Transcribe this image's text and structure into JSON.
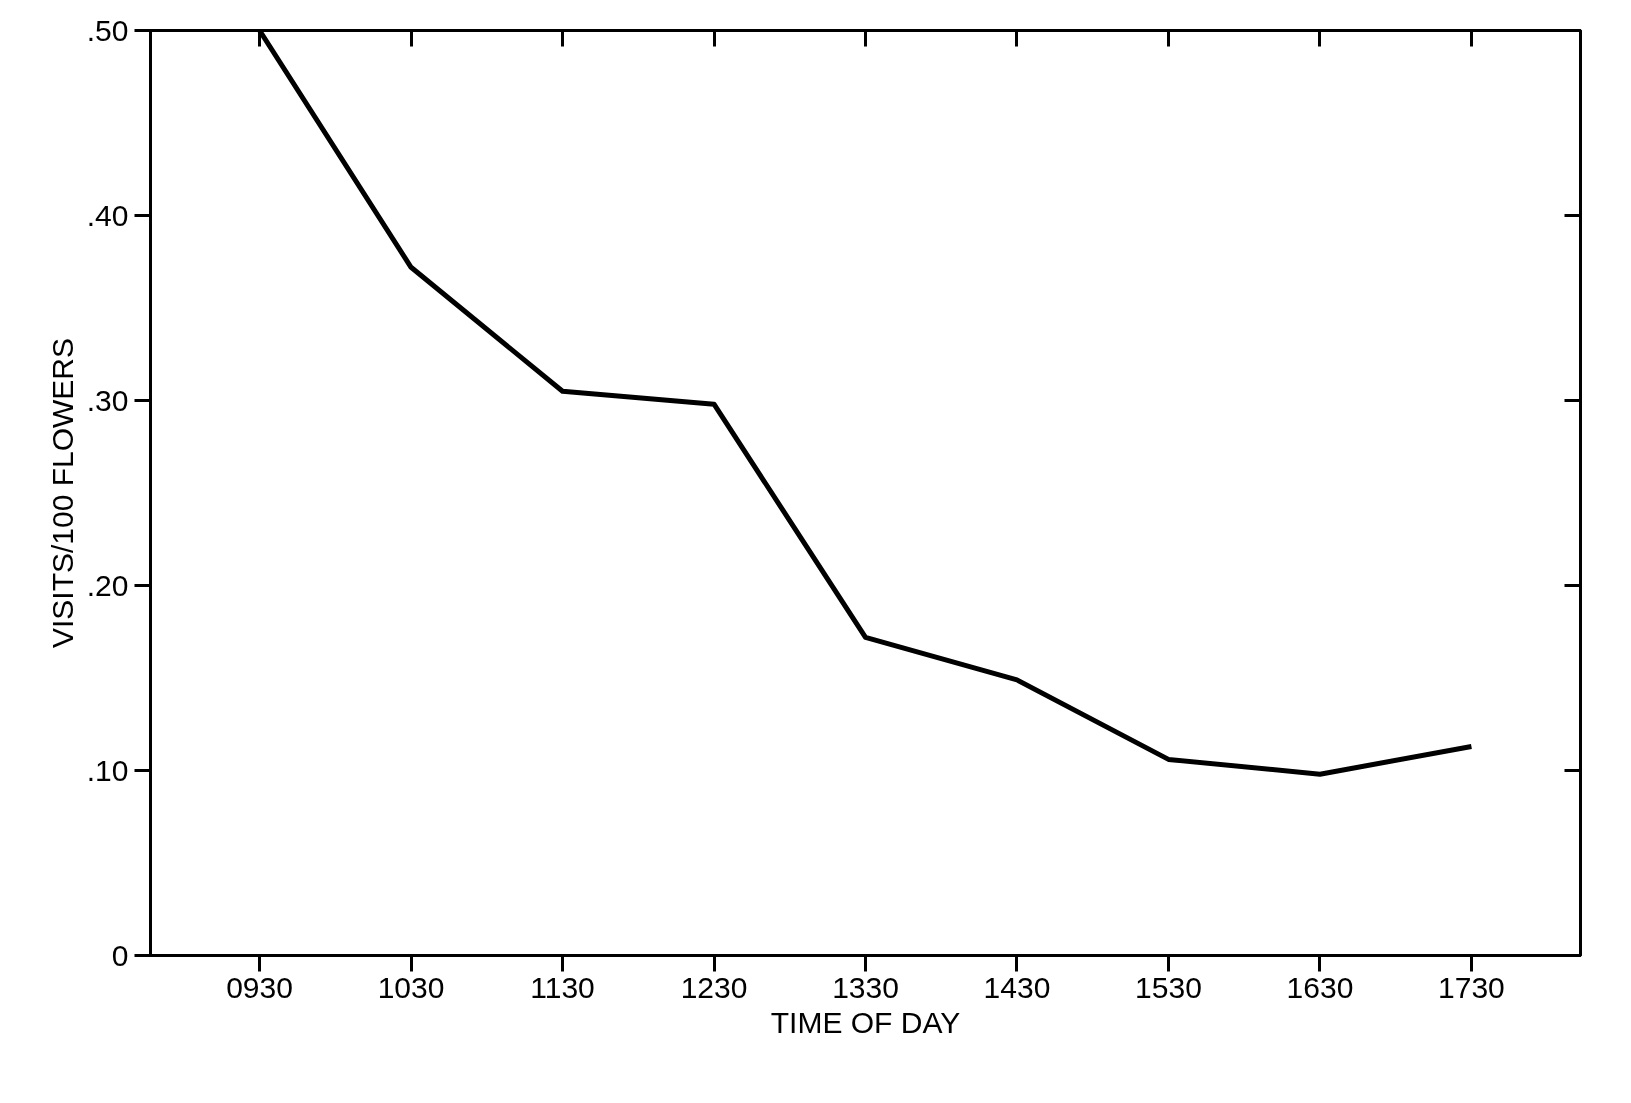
{
  "chart_data": {
    "type": "line",
    "xlabel": "TIME OF DAY",
    "ylabel": "VISITS/100 FLOWERS",
    "categories": [
      "0930",
      "1030",
      "1130",
      "1230",
      "1330",
      "1430",
      "1530",
      "1630",
      "1730"
    ],
    "series": [
      {
        "color": "#000000",
        "values": [
          0.5,
          0.372,
          0.305,
          0.298,
          0.172,
          0.149,
          0.106,
          0.098,
          0.113
        ]
      }
    ],
    "ylim": [
      0,
      0.5
    ],
    "yticks": [
      {
        "value": 0,
        "label": "0"
      },
      {
        "value": 0.1,
        "label": ".10"
      },
      {
        "value": 0.2,
        "label": ".20"
      },
      {
        "value": 0.3,
        "label": ".30"
      },
      {
        "value": 0.4,
        "label": ".40"
      },
      {
        "value": 0.5,
        "label": ".50"
      }
    ],
    "grid": false,
    "marker": "none",
    "line_style": "solid"
  }
}
